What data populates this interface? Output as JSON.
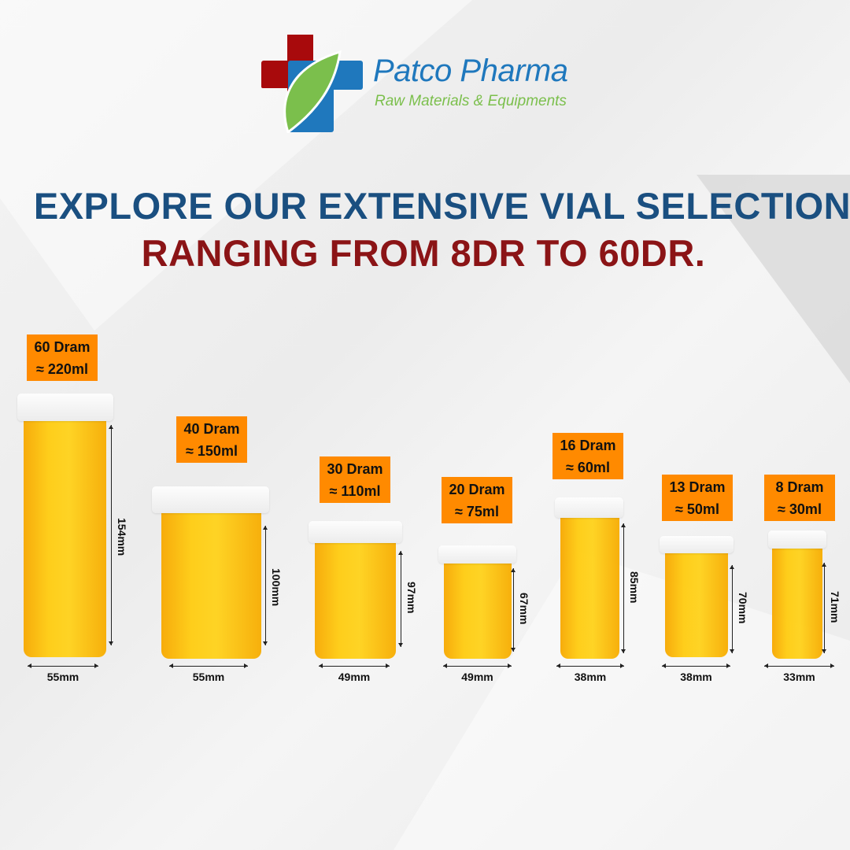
{
  "brand": {
    "name": "Patco Pharma",
    "tagline": "Raw Materials & Equipments",
    "colors": {
      "red": "#a80a0c",
      "blue": "#1f78bd",
      "green": "#7bbf4c"
    }
  },
  "headline": {
    "line1": "EXPLORE OUR EXTENSIVE VIAL SELECTION",
    "line2": "RANGING FROM 8DR TO 60DR.",
    "line1_color": "#1a4f80",
    "line2_color": "#8b1416"
  },
  "label_color": "#ff8a00",
  "vials": [
    {
      "dram": "60 Dram",
      "volume": "≈ 220ml",
      "height": "154mm",
      "width": "55mm"
    },
    {
      "dram": "40 Dram",
      "volume": "≈ 150ml",
      "height": "100mm",
      "width": "55mm"
    },
    {
      "dram": "30 Dram",
      "volume": "≈ 110ml",
      "height": "97mm",
      "width": "49mm"
    },
    {
      "dram": "20 Dram",
      "volume": "≈ 75ml",
      "height": "67mm",
      "width": "49mm"
    },
    {
      "dram": "16 Dram",
      "volume": "≈ 60ml",
      "height": "85mm",
      "width": "38mm"
    },
    {
      "dram": "13 Dram",
      "volume": "≈ 50ml",
      "height": "70mm",
      "width": "38mm"
    },
    {
      "dram": "8 Dram",
      "volume": "≈ 30ml",
      "height": "71mm",
      "width": "33mm"
    }
  ]
}
